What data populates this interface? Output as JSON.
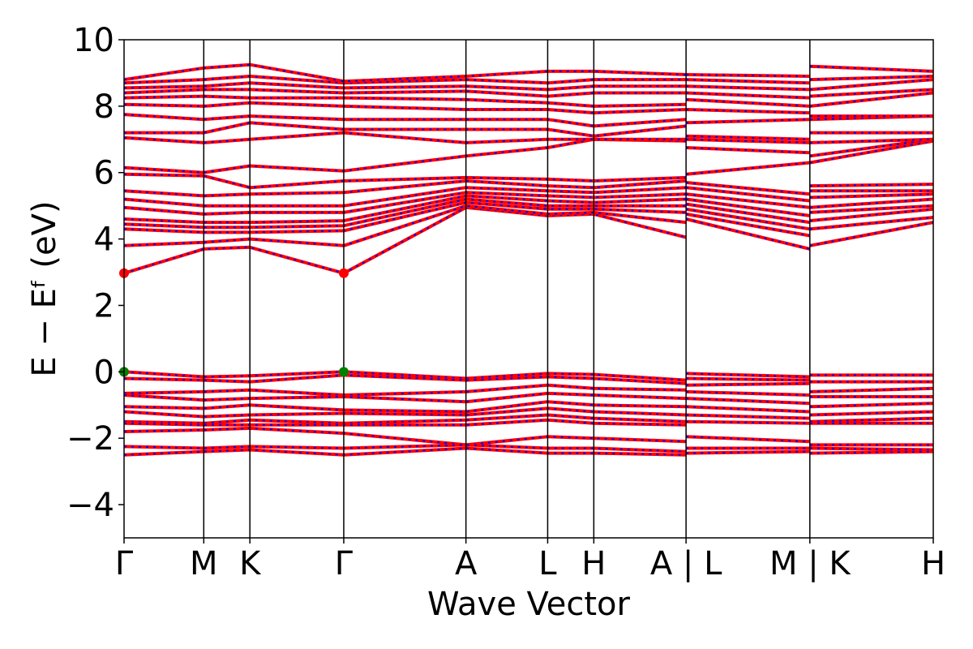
{
  "chart_data": {
    "type": "line",
    "title": "",
    "xlabel": "Wave Vector",
    "ylabel": "E − Eᶠ (eV)",
    "ylim": [
      -5,
      10
    ],
    "yticks": [
      -4,
      -2,
      0,
      2,
      4,
      6,
      8,
      10
    ],
    "ytick_labels": [
      "−4",
      "−2",
      "0",
      "2",
      "4",
      "6",
      "8",
      "10"
    ],
    "xticks": [
      0.0,
      0.0985,
      0.1555,
      0.2715,
      0.4225,
      0.5235,
      0.5805,
      0.6945,
      0.8475,
      1.0
    ],
    "xtick_labels": [
      "Γ",
      "M",
      "K",
      "Γ",
      "A",
      "L",
      "H",
      "A | L",
      "M | K",
      "H"
    ],
    "path_breaks_at": [
      0.6945,
      0.8475
    ],
    "grid": false,
    "legend": "none",
    "colors": {
      "band_main": "#ff0000",
      "band_dash": "#0000ff",
      "cbm_marker": "#ff0000",
      "vbm_marker": "#008000",
      "axes": "#000000"
    },
    "markers": [
      {
        "name": "CBM",
        "x": 0.0,
        "y": 2.97,
        "color": "#ff0000"
      },
      {
        "name": "CBM",
        "x": 0.2715,
        "y": 2.97,
        "color": "#ff0000"
      },
      {
        "name": "VBM",
        "x": 0.0,
        "y": 0.0,
        "color": "#008000"
      },
      {
        "name": "VBM",
        "x": 0.2715,
        "y": 0.0,
        "color": "#008000"
      }
    ],
    "bands": {
      "x": [
        0.0,
        0.0985,
        0.1555,
        0.2715,
        0.4225,
        0.5235,
        0.5805,
        0.6945,
        0.6946,
        0.8475,
        0.8476,
        1.0
      ],
      "series": [
        {
          "values": [
            0.0,
            -0.15,
            -0.12,
            0.0,
            -0.2,
            -0.05,
            -0.08,
            -0.25,
            -0.05,
            -0.15,
            -0.1,
            -0.1
          ]
        },
        {
          "values": [
            -0.2,
            -0.25,
            -0.3,
            -0.1,
            -0.25,
            -0.15,
            -0.2,
            -0.35,
            -0.2,
            -0.25,
            -0.3,
            -0.3
          ]
        },
        {
          "values": [
            -0.65,
            -0.6,
            -0.55,
            -0.7,
            -0.6,
            -0.4,
            -0.5,
            -0.55,
            -0.4,
            -0.35,
            -0.6,
            -0.5
          ]
        },
        {
          "values": [
            -0.7,
            -0.85,
            -0.8,
            -0.75,
            -0.9,
            -0.65,
            -0.7,
            -0.8,
            -0.6,
            -0.7,
            -0.75,
            -0.75
          ]
        },
        {
          "values": [
            -1.05,
            -1.1,
            -1.0,
            -1.15,
            -1.2,
            -0.9,
            -1.0,
            -1.05,
            -0.8,
            -0.95,
            -1.05,
            -0.95
          ]
        },
        {
          "values": [
            -1.2,
            -1.35,
            -1.3,
            -1.25,
            -1.3,
            -1.1,
            -1.2,
            -1.3,
            -1.05,
            -1.2,
            -1.3,
            -1.2
          ]
        },
        {
          "values": [
            -1.5,
            -1.55,
            -1.45,
            -1.55,
            -1.45,
            -1.3,
            -1.4,
            -1.5,
            -1.3,
            -1.4,
            -1.5,
            -1.4
          ]
        },
        {
          "values": [
            -1.55,
            -1.6,
            -1.6,
            -1.6,
            -1.6,
            -1.45,
            -1.55,
            -1.6,
            -1.5,
            -1.55,
            -1.55,
            -1.55
          ]
        },
        {
          "values": [
            -1.8,
            -1.75,
            -1.7,
            -1.85,
            -2.2,
            -1.95,
            -2.0,
            -2.1,
            -1.95,
            -2.1,
            -2.2,
            -2.2
          ]
        },
        {
          "values": [
            -2.25,
            -2.3,
            -2.25,
            -2.3,
            -2.2,
            -2.3,
            -2.3,
            -2.4,
            -2.3,
            -2.3,
            -2.3,
            -2.35
          ]
        },
        {
          "values": [
            -2.5,
            -2.4,
            -2.35,
            -2.5,
            -2.3,
            -2.45,
            -2.45,
            -2.5,
            -2.45,
            -2.4,
            -2.45,
            -2.4
          ]
        },
        {
          "values": [
            2.97,
            3.7,
            3.75,
            2.97,
            4.95,
            4.7,
            4.75,
            4.05,
            4.6,
            3.7,
            3.8,
            4.5
          ]
        },
        {
          "values": [
            3.8,
            3.9,
            4.0,
            3.8,
            5.0,
            4.75,
            4.8,
            4.5,
            4.75,
            4.1,
            4.3,
            4.65
          ]
        },
        {
          "values": [
            4.3,
            4.2,
            4.2,
            4.25,
            5.1,
            4.9,
            4.9,
            4.8,
            4.9,
            4.3,
            4.55,
            4.9
          ]
        },
        {
          "values": [
            4.45,
            4.35,
            4.35,
            4.4,
            5.2,
            5.0,
            5.0,
            5.0,
            5.05,
            4.5,
            4.8,
            5.0
          ]
        },
        {
          "values": [
            4.6,
            4.5,
            4.5,
            4.55,
            5.3,
            5.15,
            5.1,
            5.2,
            5.2,
            4.7,
            4.95,
            5.2
          ]
        },
        {
          "values": [
            4.95,
            4.75,
            4.8,
            4.8,
            5.4,
            5.3,
            5.25,
            5.35,
            5.35,
            4.95,
            5.25,
            5.35
          ]
        },
        {
          "values": [
            5.2,
            5.0,
            5.0,
            5.0,
            5.55,
            5.45,
            5.4,
            5.55,
            5.55,
            5.15,
            5.45,
            5.45
          ]
        },
        {
          "values": [
            5.45,
            5.3,
            5.35,
            5.4,
            5.75,
            5.6,
            5.55,
            5.75,
            5.7,
            5.35,
            5.6,
            5.65
          ]
        },
        {
          "values": [
            5.95,
            5.9,
            5.55,
            5.75,
            5.85,
            5.8,
            5.75,
            5.85,
            5.95,
            6.3,
            6.3,
            6.95
          ]
        },
        {
          "values": [
            6.15,
            6.0,
            6.2,
            6.05,
            6.5,
            6.75,
            7.0,
            6.95,
            6.75,
            6.6,
            6.5,
            7.0
          ]
        },
        {
          "values": [
            7.05,
            6.9,
            7.0,
            7.2,
            6.9,
            7.0,
            7.0,
            7.0,
            7.0,
            6.9,
            6.9,
            7.0
          ]
        },
        {
          "values": [
            7.2,
            7.2,
            7.5,
            7.3,
            7.3,
            7.3,
            7.1,
            7.4,
            7.1,
            7.0,
            7.2,
            7.2
          ]
        },
        {
          "values": [
            7.75,
            7.6,
            7.7,
            7.6,
            7.6,
            7.6,
            7.4,
            7.6,
            7.5,
            7.6,
            7.6,
            7.7
          ]
        },
        {
          "values": [
            8.05,
            8.0,
            8.1,
            8.0,
            7.9,
            7.9,
            7.8,
            7.9,
            7.9,
            7.8,
            7.7,
            7.7
          ]
        },
        {
          "values": [
            8.25,
            8.3,
            8.25,
            8.25,
            8.2,
            8.1,
            8.0,
            8.05,
            8.2,
            8.0,
            8.0,
            8.4
          ]
        },
        {
          "values": [
            8.4,
            8.5,
            8.5,
            8.4,
            8.45,
            8.3,
            8.4,
            8.4,
            8.4,
            8.25,
            8.3,
            8.5
          ]
        },
        {
          "values": [
            8.55,
            8.6,
            8.7,
            8.55,
            8.6,
            8.5,
            8.6,
            8.6,
            8.6,
            8.5,
            8.5,
            8.8
          ]
        },
        {
          "values": [
            8.7,
            8.8,
            8.9,
            8.7,
            8.8,
            8.7,
            8.8,
            8.8,
            8.8,
            8.7,
            8.8,
            8.9
          ]
        },
        {
          "values": [
            8.8,
            9.15,
            9.25,
            8.75,
            8.9,
            9.05,
            9.05,
            8.95,
            8.95,
            8.9,
            9.2,
            9.05
          ]
        }
      ]
    }
  }
}
